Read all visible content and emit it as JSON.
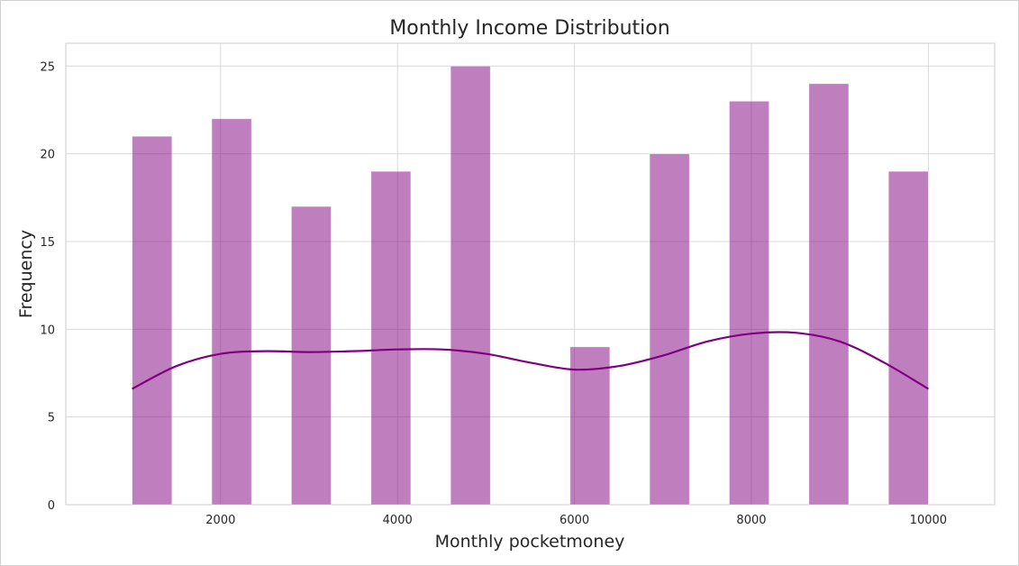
{
  "chart_data": {
    "type": "bar",
    "subtype": "histogram-with-kde",
    "title": "Monthly Income Distribution",
    "xlabel": "Monthly pocketmoney",
    "ylabel": "Frequency",
    "xlim": [
      250,
      10750
    ],
    "ylim": [
      0,
      26.3
    ],
    "xticks": [
      2000,
      4000,
      6000,
      8000,
      10000
    ],
    "yticks": [
      0,
      5,
      10,
      15,
      20,
      25
    ],
    "grid": true,
    "bar_color": "#800080",
    "bar_opacity": 0.5,
    "line_color": "#800080",
    "bins": [
      {
        "x_start": 1000,
        "x_end": 1450,
        "value": 21
      },
      {
        "x_start": 1900,
        "x_end": 2350,
        "value": 22
      },
      {
        "x_start": 2800,
        "x_end": 3250,
        "value": 17
      },
      {
        "x_start": 3700,
        "x_end": 4150,
        "value": 19
      },
      {
        "x_start": 4600,
        "x_end": 5050,
        "value": 25
      },
      {
        "x_start": 5500,
        "x_end": 5950,
        "value": 0
      },
      {
        "x_start": 5950,
        "x_end": 6400,
        "value": 9
      },
      {
        "x_start": 6850,
        "x_end": 7300,
        "value": 20
      },
      {
        "x_start": 7750,
        "x_end": 8200,
        "value": 23
      },
      {
        "x_start": 8650,
        "x_end": 9100,
        "value": 24
      },
      {
        "x_start": 9550,
        "x_end": 10000,
        "value": 19
      }
    ],
    "kde": {
      "x": [
        1000,
        1500,
        2000,
        2500,
        3000,
        3500,
        4000,
        4500,
        5000,
        5500,
        6000,
        6500,
        7000,
        7500,
        8000,
        8500,
        9000,
        9500,
        10000
      ],
      "y": [
        6.6,
        7.9,
        8.6,
        8.75,
        8.7,
        8.75,
        8.85,
        8.85,
        8.6,
        8.1,
        7.7,
        7.9,
        8.5,
        9.3,
        9.75,
        9.8,
        9.3,
        8.1,
        6.6
      ]
    }
  }
}
